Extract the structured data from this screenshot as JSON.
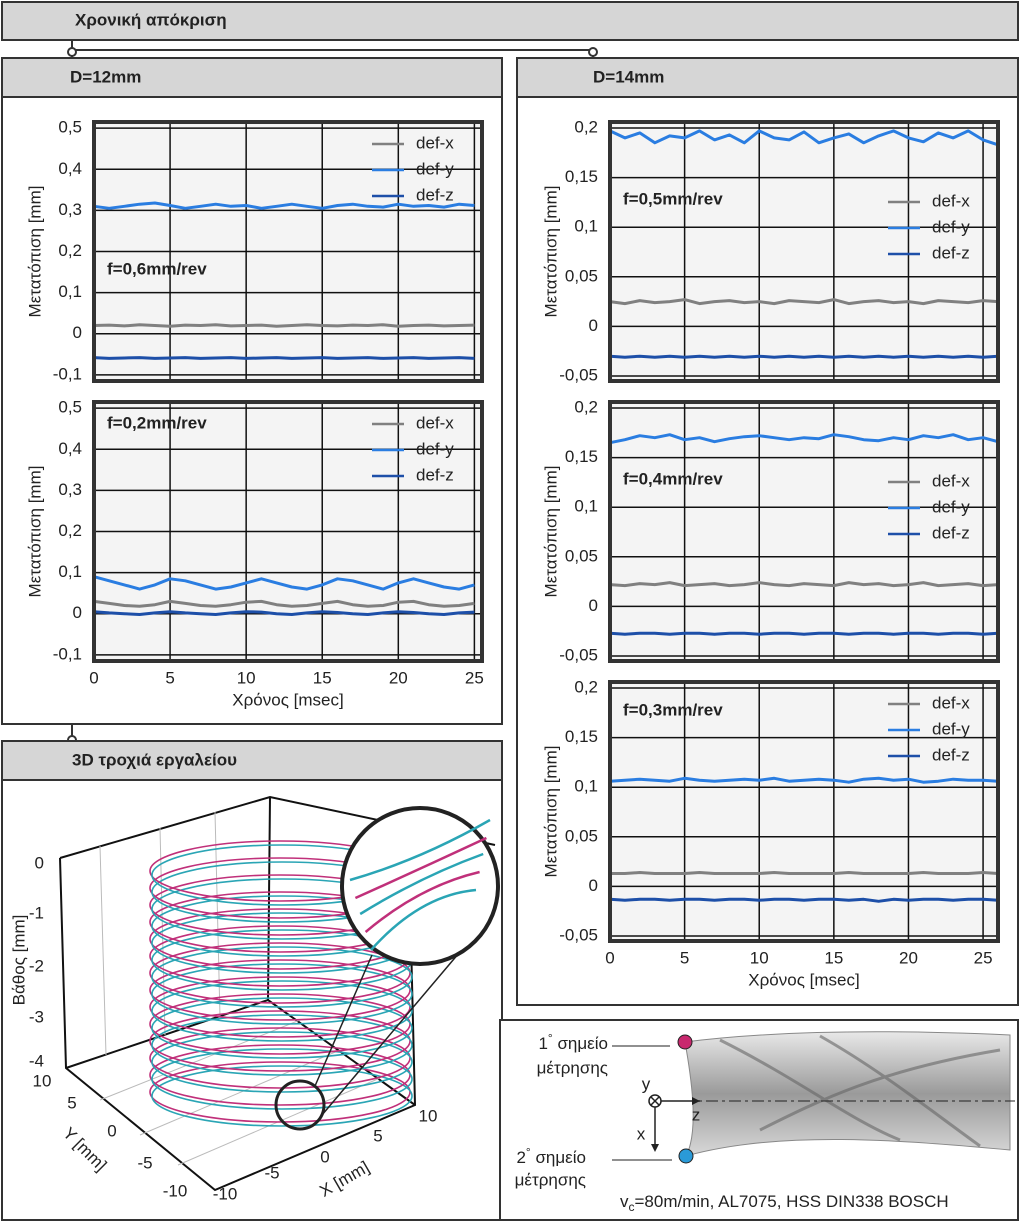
{
  "header": {
    "title": "Χρονική απόκριση"
  },
  "panels": {
    "left_title": "D=12mm",
    "right_title": "D=14mm",
    "trajectory_title": "3D τροχιά εργαλείου"
  },
  "chart_data": [
    {
      "type": "line",
      "annotation": "f=0,6mm/rev",
      "ylabel": "Μετατόπιση [mm]",
      "legend": "right",
      "grid": true,
      "xlim": [
        0,
        25.5
      ],
      "ylim": [
        -0.115,
        0.515
      ],
      "xticks": [
        0,
        5,
        10,
        15,
        20,
        25
      ],
      "xtick_labels": false,
      "yticks": [
        {
          "value": -0.1,
          "label": "-0,1"
        },
        0,
        {
          "value": 0.1,
          "label": "0,1"
        },
        {
          "value": 0.2,
          "label": "0,2"
        },
        {
          "value": 0.3,
          "label": "0,3"
        },
        {
          "value": 0.4,
          "label": "0,4"
        },
        {
          "value": 0.5,
          "label": "0,5"
        }
      ],
      "x": [
        0,
        1,
        2,
        3,
        4,
        5,
        6,
        7,
        8,
        9,
        10,
        11,
        12,
        13,
        14,
        15,
        16,
        17,
        18,
        19,
        20,
        21,
        22,
        23,
        24,
        25
      ],
      "series": [
        {
          "name": "def-x",
          "color": "#808080",
          "values": [
            0.02,
            0.021,
            0.019,
            0.022,
            0.02,
            0.018,
            0.021,
            0.02,
            0.022,
            0.019,
            0.02,
            0.021,
            0.018,
            0.02,
            0.022,
            0.02,
            0.019,
            0.021,
            0.02,
            0.022,
            0.018,
            0.02,
            0.021,
            0.019,
            0.02,
            0.021
          ]
        },
        {
          "name": "def-y",
          "color": "#2a7de1",
          "values": [
            0.31,
            0.305,
            0.31,
            0.315,
            0.318,
            0.312,
            0.305,
            0.31,
            0.315,
            0.31,
            0.312,
            0.305,
            0.31,
            0.315,
            0.31,
            0.305,
            0.312,
            0.315,
            0.31,
            0.308,
            0.315,
            0.31,
            0.312,
            0.308,
            0.315,
            0.312
          ]
        },
        {
          "name": "def-z",
          "color": "#1d4fa8",
          "values": [
            -0.058,
            -0.06,
            -0.059,
            -0.058,
            -0.06,
            -0.059,
            -0.058,
            -0.06,
            -0.059,
            -0.058,
            -0.06,
            -0.059,
            -0.058,
            -0.06,
            -0.059,
            -0.058,
            -0.06,
            -0.059,
            -0.058,
            -0.06,
            -0.059,
            -0.058,
            -0.06,
            -0.059,
            -0.058,
            -0.06
          ]
        }
      ]
    },
    {
      "type": "line",
      "annotation": "f=0,2mm/rev",
      "ylabel": "Μετατόπιση [mm]",
      "xlabel": "Χρόνος [msec]",
      "legend": "upper right",
      "grid": true,
      "xlim": [
        0,
        25.5
      ],
      "ylim": [
        -0.115,
        0.515
      ],
      "xticks": [
        0,
        5,
        10,
        15,
        20,
        25
      ],
      "xtick_labels": true,
      "yticks": [
        {
          "value": -0.1,
          "label": "-0,1"
        },
        0,
        {
          "value": 0.1,
          "label": "0,1"
        },
        {
          "value": 0.2,
          "label": "0,2"
        },
        {
          "value": 0.3,
          "label": "0,3"
        },
        {
          "value": 0.4,
          "label": "0,4"
        },
        {
          "value": 0.5,
          "label": "0,5"
        }
      ],
      "x": [
        0,
        1,
        2,
        3,
        4,
        5,
        6,
        7,
        8,
        9,
        10,
        11,
        12,
        13,
        14,
        15,
        16,
        17,
        18,
        19,
        20,
        21,
        22,
        23,
        24,
        25
      ],
      "series": [
        {
          "name": "def-x",
          "color": "#808080",
          "values": [
            0.03,
            0.025,
            0.02,
            0.018,
            0.022,
            0.03,
            0.025,
            0.02,
            0.018,
            0.022,
            0.028,
            0.03,
            0.022,
            0.018,
            0.02,
            0.025,
            0.03,
            0.022,
            0.018,
            0.02,
            0.028,
            0.03,
            0.022,
            0.018,
            0.02,
            0.025
          ]
        },
        {
          "name": "def-y",
          "color": "#2a7de1",
          "values": [
            0.09,
            0.08,
            0.07,
            0.06,
            0.07,
            0.085,
            0.08,
            0.07,
            0.06,
            0.065,
            0.075,
            0.085,
            0.075,
            0.065,
            0.06,
            0.07,
            0.085,
            0.08,
            0.07,
            0.06,
            0.075,
            0.085,
            0.075,
            0.065,
            0.06,
            0.07
          ]
        },
        {
          "name": "def-z",
          "color": "#1d4fa8",
          "values": [
            0.005,
            0.002,
            0,
            -0.002,
            0.002,
            0.005,
            0.002,
            0,
            -0.002,
            0.002,
            0.005,
            0.004,
            0,
            -0.002,
            0.002,
            0.005,
            0.003,
            0,
            -0.002,
            0.002,
            0.005,
            0.003,
            0,
            -0.002,
            0.002,
            0.004
          ]
        }
      ]
    },
    {
      "type": "line",
      "annotation": "f=0,5mm/rev",
      "ylabel": "Μετατόπιση [mm]",
      "legend": "center right",
      "grid": true,
      "xlim": [
        0,
        26
      ],
      "ylim": [
        -0.055,
        0.206
      ],
      "xticks": [
        0,
        5,
        10,
        15,
        20,
        25
      ],
      "xtick_labels": false,
      "yticks": [
        {
          "value": -0.05,
          "label": "-0,05"
        },
        0,
        {
          "value": 0.05,
          "label": "0,05"
        },
        {
          "value": 0.1,
          "label": "0,1"
        },
        {
          "value": 0.15,
          "label": "0,15"
        },
        {
          "value": 0.2,
          "label": "0,2"
        }
      ],
      "x": [
        0,
        1,
        2,
        3,
        4,
        5,
        6,
        7,
        8,
        9,
        10,
        11,
        12,
        13,
        14,
        15,
        16,
        17,
        18,
        19,
        20,
        21,
        22,
        23,
        24,
        25,
        26
      ],
      "series": [
        {
          "name": "def-x",
          "color": "#808080",
          "values": [
            0.025,
            0.023,
            0.026,
            0.024,
            0.025,
            0.027,
            0.023,
            0.025,
            0.026,
            0.024,
            0.025,
            0.023,
            0.026,
            0.025,
            0.024,
            0.027,
            0.023,
            0.025,
            0.026,
            0.024,
            0.025,
            0.023,
            0.026,
            0.025,
            0.024,
            0.026,
            0.025
          ]
        },
        {
          "name": "def-y",
          "color": "#2a7de1",
          "values": [
            0.197,
            0.19,
            0.195,
            0.185,
            0.192,
            0.19,
            0.197,
            0.188,
            0.193,
            0.185,
            0.197,
            0.19,
            0.188,
            0.196,
            0.185,
            0.19,
            0.194,
            0.185,
            0.192,
            0.197,
            0.19,
            0.186,
            0.195,
            0.19,
            0.197,
            0.188,
            0.183
          ]
        },
        {
          "name": "def-z",
          "color": "#1d4fa8",
          "values": [
            -0.03,
            -0.031,
            -0.03,
            -0.031,
            -0.03,
            -0.031,
            -0.03,
            -0.031,
            -0.03,
            -0.031,
            -0.03,
            -0.031,
            -0.03,
            -0.031,
            -0.03,
            -0.031,
            -0.03,
            -0.031,
            -0.03,
            -0.031,
            -0.03,
            -0.031,
            -0.03,
            -0.031,
            -0.03,
            -0.031,
            -0.03
          ]
        }
      ]
    },
    {
      "type": "line",
      "annotation": "f=0,4mm/rev",
      "ylabel": "Μετατόπιση [mm]",
      "legend": "center right",
      "grid": true,
      "xlim": [
        0,
        26
      ],
      "ylim": [
        -0.055,
        0.206
      ],
      "xticks": [
        0,
        5,
        10,
        15,
        20,
        25
      ],
      "xtick_labels": false,
      "yticks": [
        {
          "value": -0.05,
          "label": "-0,05"
        },
        0,
        {
          "value": 0.05,
          "label": "0,05"
        },
        {
          "value": 0.1,
          "label": "0,1"
        },
        {
          "value": 0.15,
          "label": "0,15"
        },
        {
          "value": 0.2,
          "label": "0,2"
        }
      ],
      "x": [
        0,
        1,
        2,
        3,
        4,
        5,
        6,
        7,
        8,
        9,
        10,
        11,
        12,
        13,
        14,
        15,
        16,
        17,
        18,
        19,
        20,
        21,
        22,
        23,
        24,
        25,
        26
      ],
      "series": [
        {
          "name": "def-x",
          "color": "#808080",
          "values": [
            0.022,
            0.021,
            0.023,
            0.022,
            0.024,
            0.021,
            0.022,
            0.023,
            0.021,
            0.022,
            0.024,
            0.022,
            0.021,
            0.023,
            0.022,
            0.021,
            0.024,
            0.022,
            0.023,
            0.021,
            0.022,
            0.024,
            0.021,
            0.022,
            0.023,
            0.021,
            0.022
          ]
        },
        {
          "name": "def-y",
          "color": "#2a7de1",
          "values": [
            0.165,
            0.168,
            0.172,
            0.17,
            0.173,
            0.168,
            0.17,
            0.166,
            0.169,
            0.171,
            0.172,
            0.17,
            0.168,
            0.17,
            0.169,
            0.173,
            0.171,
            0.168,
            0.167,
            0.17,
            0.168,
            0.172,
            0.17,
            0.173,
            0.168,
            0.17,
            0.166
          ]
        },
        {
          "name": "def-z",
          "color": "#1d4fa8",
          "values": [
            -0.027,
            -0.028,
            -0.027,
            -0.027,
            -0.028,
            -0.027,
            -0.027,
            -0.028,
            -0.027,
            -0.027,
            -0.028,
            -0.027,
            -0.027,
            -0.028,
            -0.027,
            -0.027,
            -0.028,
            -0.027,
            -0.027,
            -0.028,
            -0.027,
            -0.027,
            -0.028,
            -0.027,
            -0.027,
            -0.028,
            -0.027
          ]
        }
      ]
    },
    {
      "type": "line",
      "annotation": "f=0,3mm/rev",
      "ylabel": "Μετατόπιση [mm]",
      "xlabel": "Χρόνος [msec]",
      "legend": "upper right",
      "grid": true,
      "xlim": [
        0,
        26
      ],
      "ylim": [
        -0.055,
        0.206
      ],
      "xticks": [
        0,
        5,
        10,
        15,
        20,
        25
      ],
      "xtick_labels": true,
      "yticks": [
        {
          "value": -0.05,
          "label": "-0,05"
        },
        0,
        {
          "value": 0.05,
          "label": "0,05"
        },
        {
          "value": 0.1,
          "label": "0,1"
        },
        {
          "value": 0.15,
          "label": "0,15"
        },
        {
          "value": 0.2,
          "label": "0,2"
        }
      ],
      "x": [
        0,
        1,
        2,
        3,
        4,
        5,
        6,
        7,
        8,
        9,
        10,
        11,
        12,
        13,
        14,
        15,
        16,
        17,
        18,
        19,
        20,
        21,
        22,
        23,
        24,
        25,
        26
      ],
      "series": [
        {
          "name": "def-x",
          "color": "#808080",
          "values": [
            0.013,
            0.013,
            0.014,
            0.013,
            0.013,
            0.013,
            0.014,
            0.013,
            0.013,
            0.013,
            0.013,
            0.014,
            0.013,
            0.013,
            0.013,
            0.013,
            0.014,
            0.013,
            0.013,
            0.013,
            0.013,
            0.014,
            0.013,
            0.013,
            0.013,
            0.014,
            0.013
          ]
        },
        {
          "name": "def-y",
          "color": "#2a7de1",
          "values": [
            0.106,
            0.107,
            0.108,
            0.107,
            0.106,
            0.109,
            0.107,
            0.106,
            0.107,
            0.108,
            0.107,
            0.109,
            0.106,
            0.107,
            0.108,
            0.107,
            0.105,
            0.108,
            0.109,
            0.107,
            0.108,
            0.105,
            0.106,
            0.108,
            0.107,
            0.107,
            0.106
          ]
        },
        {
          "name": "def-z",
          "color": "#1d4fa8",
          "values": [
            -0.013,
            -0.014,
            -0.013,
            -0.013,
            -0.014,
            -0.013,
            -0.013,
            -0.014,
            -0.013,
            -0.013,
            -0.014,
            -0.013,
            -0.013,
            -0.014,
            -0.013,
            -0.013,
            -0.014,
            -0.013,
            -0.015,
            -0.013,
            -0.014,
            -0.013,
            -0.013,
            -0.014,
            -0.013,
            -0.013,
            -0.014
          ]
        }
      ]
    }
  ],
  "trajectory": {
    "zlabel": "Βάθος [mm]",
    "ylabel": "Y [mm]",
    "xlabel": "X [mm]",
    "zticks": [
      "0",
      "-1",
      "-2",
      "-3",
      "-4"
    ],
    "yticks": [
      "10",
      "5",
      "0",
      "-5",
      "-10"
    ],
    "xticks": [
      "-10",
      "-5",
      "0",
      "5",
      "10"
    ]
  },
  "drill": {
    "point1": {
      "number": "1",
      "degree": "°",
      "text": " σημείο",
      "line2": "μέτρησης"
    },
    "point2": {
      "number": "2",
      "degree": "°",
      "text": " σημείο",
      "line2": "μέτρησης"
    },
    "axes": {
      "y": "y",
      "z": "z",
      "x": "x"
    },
    "caption": {
      "v": "v",
      "sub": "c",
      "rest": "=80m/min, AL7075, HSS DIN338 BOSCH"
    }
  }
}
